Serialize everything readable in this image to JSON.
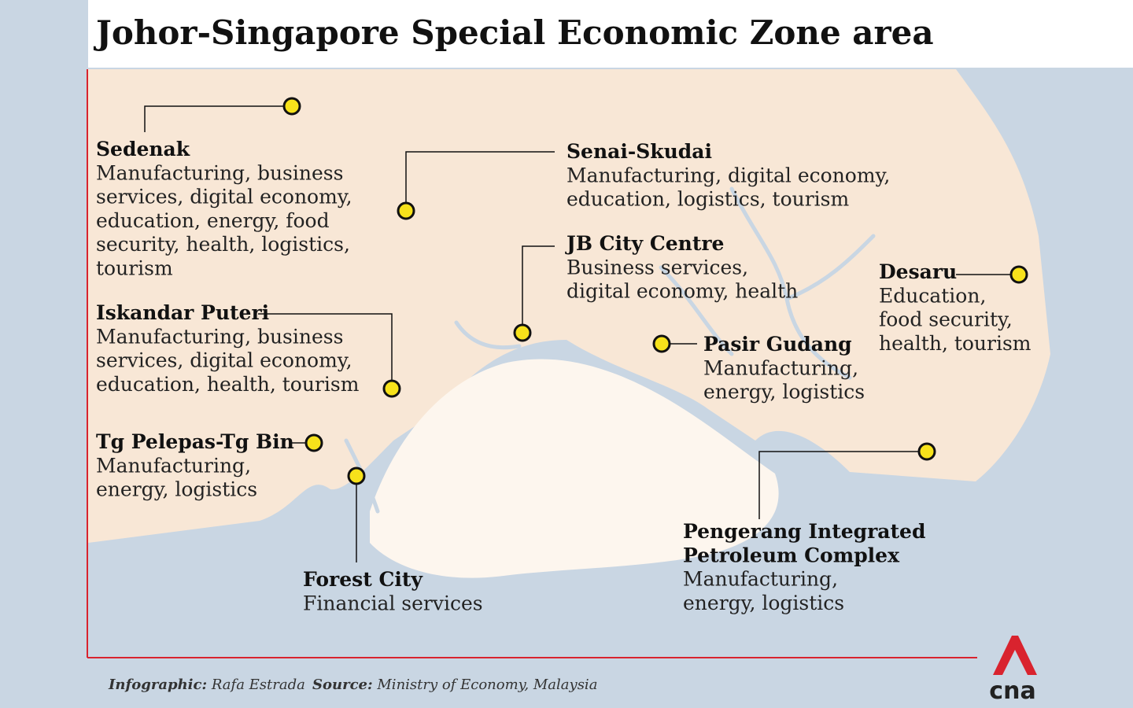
{
  "title": "Johor-Singapore Special Economic Zone area",
  "locations": [
    {
      "name": "Sedenak",
      "description": [
        "Manufacturing, business",
        "services, digital economy,",
        "education, energy, food",
        "security, health, logistics,",
        "tourism"
      ]
    },
    {
      "name": "Senai-Skudai",
      "description": [
        "Manufacturing, digital economy,",
        "education, logistics, tourism"
      ]
    },
    {
      "name": "JB City Centre",
      "description": [
        "Business services,",
        "digital economy, health"
      ]
    },
    {
      "name": "Desaru",
      "description": [
        "Education,",
        "food security,",
        "health, tourism"
      ]
    },
    {
      "name": "Iskandar Puteri",
      "description": [
        "Manufacturing, business",
        "services, digital economy,",
        "education, health, tourism"
      ]
    },
    {
      "name": "Pasir Gudang",
      "description": [
        "Manufacturing,",
        "energy, logistics"
      ]
    },
    {
      "name": "Tg Pelepas-Tg Bin",
      "description": [
        "Manufacturing,",
        "energy, logistics"
      ]
    },
    {
      "name": "Forest City",
      "description": [
        "Financial services"
      ]
    },
    {
      "name": "Pengerang Integrated",
      "name2": "Petroleum Complex",
      "description": [
        "Manufacturing,",
        "energy, logistics"
      ]
    }
  ],
  "footer": {
    "credit_label": "Infographic:",
    "credit": "Rafa Estrada",
    "source_label": "Source:",
    "source": "Ministry of Economy, Malaysia"
  },
  "logo": "cna"
}
